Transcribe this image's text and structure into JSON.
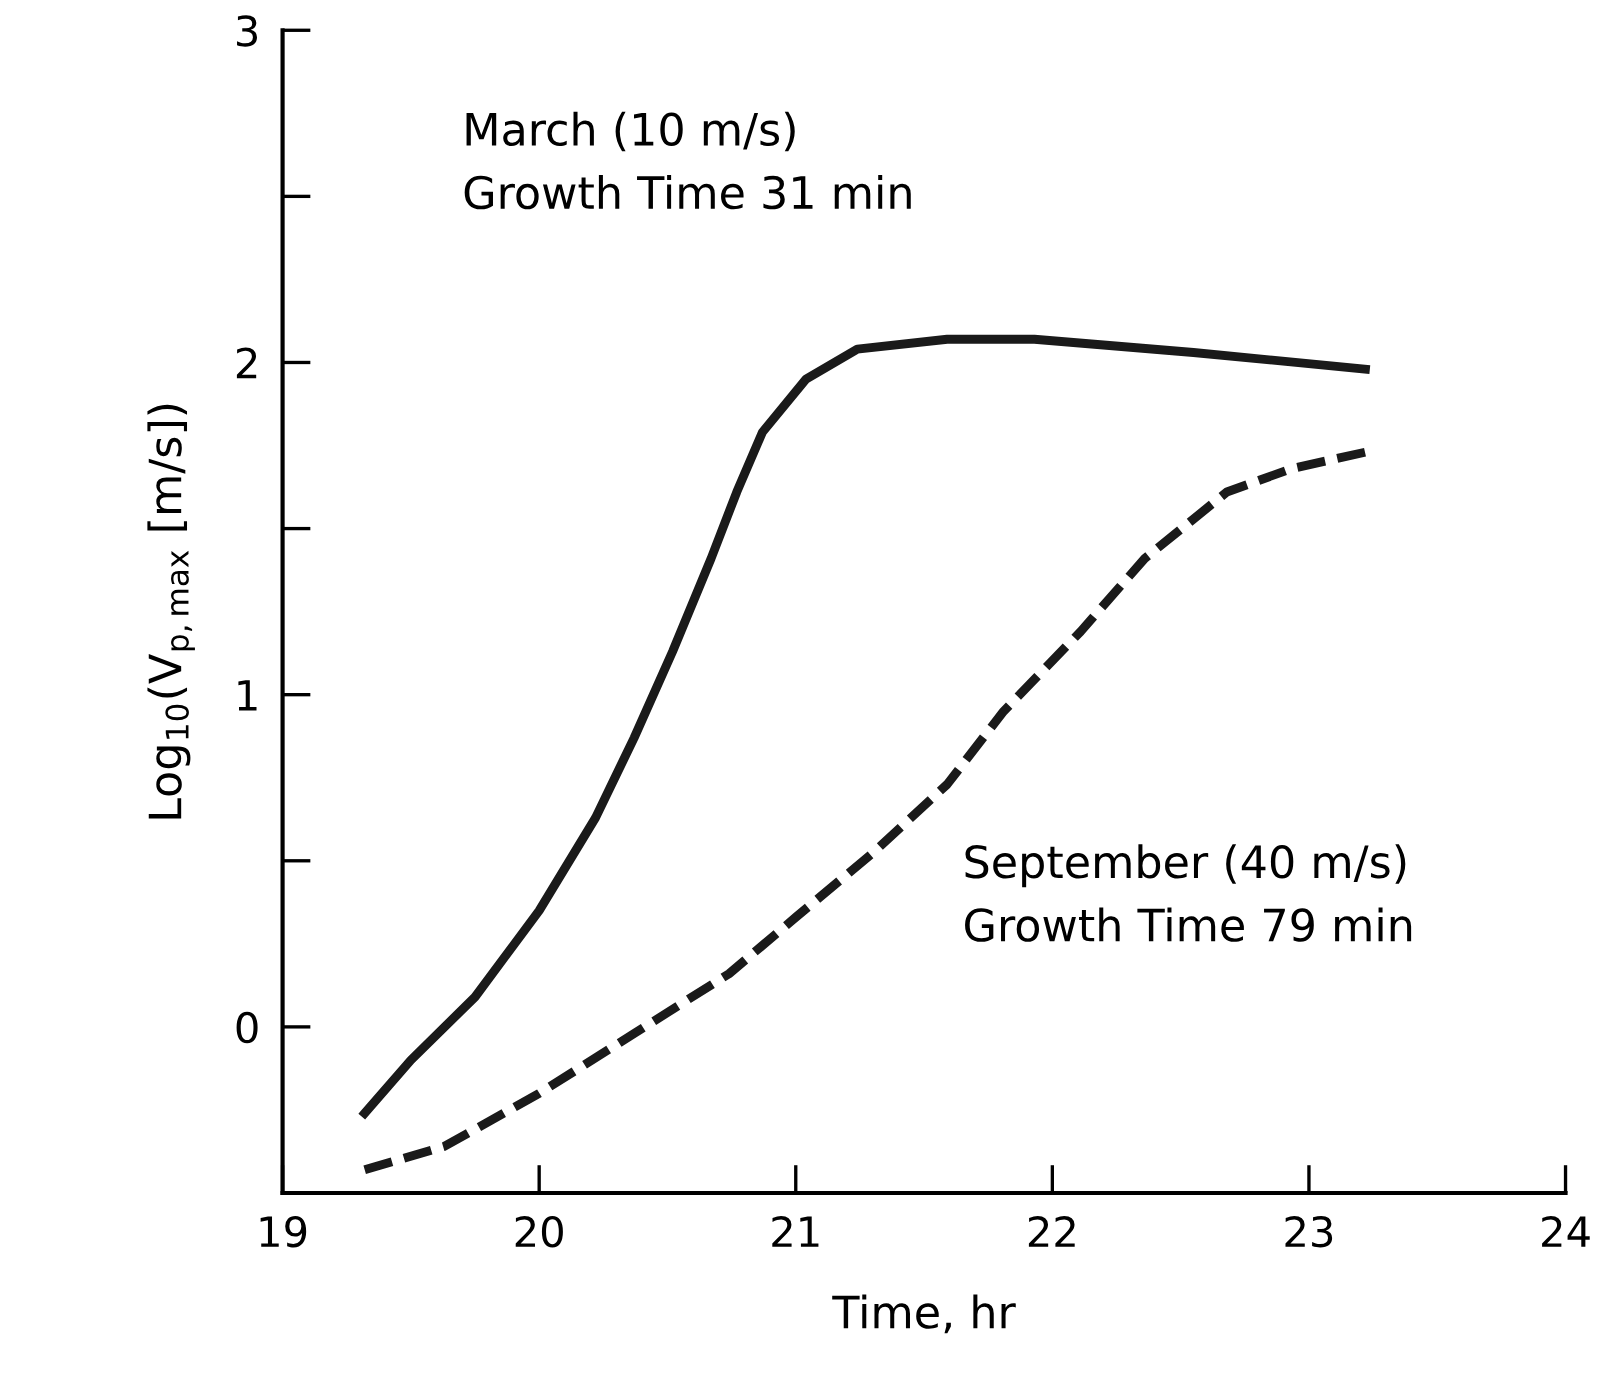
{
  "chart_data": {
    "type": "line",
    "xlabel": "Time, hr",
    "ylabel": "Log$_{10}$(V$_{p,max}$ [m/s])",
    "annotations": [
      "March (10 m/s)\nGrowth Time 31 min",
      "September (40 m/s)\nGrowth Time 79 min"
    ],
    "xlim": [
      19,
      24
    ],
    "ylim": [
      -0.5,
      3
    ],
    "xticks": [
      19,
      20,
      21,
      22,
      23,
      24
    ],
    "yticks": [
      0,
      {
        "value": 0.5,
        "label": null
      },
      1,
      {
        "value": 1.5,
        "label": null
      },
      2,
      {
        "value": 2.5,
        "label": null
      },
      3
    ],
    "grid": false,
    "legend": false,
    "marker": "none",
    "series": [
      {
        "color": "#1a1a1a",
        "line_style": "solid",
        "x": [
          19.32,
          19.5,
          19.75,
          20.0,
          20.22,
          20.37,
          20.52,
          20.67,
          20.77,
          20.87,
          21.04,
          21.24,
          21.59,
          21.93,
          22.55,
          23.22
        ],
        "values": [
          -0.26,
          -0.1,
          0.09,
          0.35,
          0.63,
          0.87,
          1.13,
          1.41,
          1.61,
          1.79,
          1.95,
          2.04,
          2.07,
          2.07,
          2.03,
          1.98
        ]
      },
      {
        "color": "#1a1a1a",
        "line_style": "dashed",
        "x": [
          19.32,
          19.63,
          20.0,
          20.37,
          20.74,
          21.0,
          21.31,
          21.59,
          21.81,
          22.11,
          22.36,
          22.68,
          22.93,
          23.22
        ],
        "values": [
          -0.43,
          -0.36,
          -0.2,
          -0.02,
          0.16,
          0.33,
          0.53,
          0.73,
          0.95,
          1.19,
          1.41,
          1.61,
          1.68,
          1.73
        ]
      }
    ]
  }
}
